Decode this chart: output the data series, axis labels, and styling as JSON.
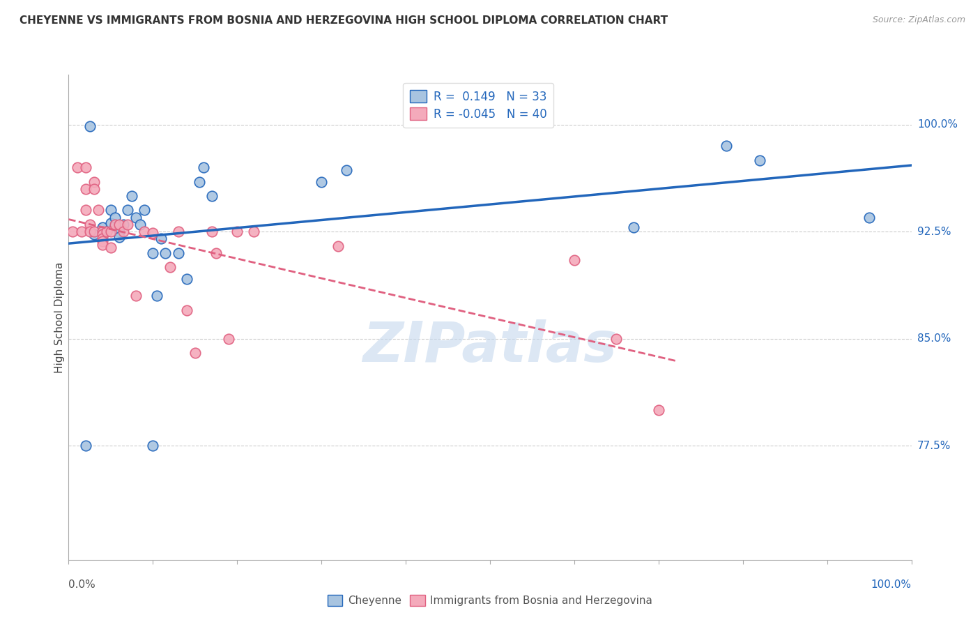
{
  "title": "CHEYENNE VS IMMIGRANTS FROM BOSNIA AND HERZEGOVINA HIGH SCHOOL DIPLOMA CORRELATION CHART",
  "source": "Source: ZipAtlas.com",
  "ylabel": "High School Diploma",
  "ytick_labels": [
    "77.5%",
    "85.0%",
    "92.5%",
    "100.0%"
  ],
  "ytick_values": [
    0.775,
    0.85,
    0.925,
    1.0
  ],
  "xlim": [
    0.0,
    1.0
  ],
  "ylim": [
    0.695,
    1.035
  ],
  "legend_label1": "R =  0.149   N = 33",
  "legend_label2": "R = -0.045   N = 40",
  "color_blue": "#A8C4E0",
  "color_pink": "#F4AABB",
  "line_blue": "#2266BB",
  "line_pink": "#E06080",
  "watermark_text": "ZIPatlas",
  "cheyenne_x": [
    0.02,
    0.025,
    0.03,
    0.04,
    0.045,
    0.05,
    0.05,
    0.055,
    0.055,
    0.06,
    0.06,
    0.065,
    0.07,
    0.075,
    0.08,
    0.085,
    0.09,
    0.1,
    0.105,
    0.11,
    0.115,
    0.13,
    0.14,
    0.155,
    0.16,
    0.17,
    0.3,
    0.33,
    0.67,
    0.78,
    0.82,
    0.95,
    0.1
  ],
  "cheyenne_y": [
    0.775,
    0.999,
    0.923,
    0.928,
    0.925,
    0.931,
    0.94,
    0.929,
    0.935,
    0.925,
    0.921,
    0.93,
    0.94,
    0.95,
    0.935,
    0.93,
    0.94,
    0.91,
    0.88,
    0.92,
    0.91,
    0.91,
    0.892,
    0.96,
    0.97,
    0.95,
    0.96,
    0.968,
    0.928,
    0.985,
    0.975,
    0.935,
    0.775
  ],
  "bosnia_x": [
    0.005,
    0.01,
    0.015,
    0.02,
    0.02,
    0.02,
    0.025,
    0.025,
    0.03,
    0.03,
    0.03,
    0.035,
    0.04,
    0.04,
    0.04,
    0.04,
    0.04,
    0.045,
    0.05,
    0.05,
    0.055,
    0.06,
    0.065,
    0.07,
    0.08,
    0.09,
    0.1,
    0.12,
    0.13,
    0.14,
    0.15,
    0.17,
    0.175,
    0.19,
    0.2,
    0.22,
    0.32,
    0.6,
    0.65,
    0.7
  ],
  "bosnia_y": [
    0.925,
    0.97,
    0.925,
    0.97,
    0.955,
    0.94,
    0.93,
    0.925,
    0.96,
    0.955,
    0.925,
    0.94,
    0.925,
    0.923,
    0.92,
    0.918,
    0.916,
    0.925,
    0.925,
    0.914,
    0.93,
    0.93,
    0.925,
    0.93,
    0.88,
    0.925,
    0.924,
    0.9,
    0.925,
    0.87,
    0.84,
    0.925,
    0.91,
    0.85,
    0.925,
    0.925,
    0.915,
    0.905,
    0.85,
    0.8
  ]
}
